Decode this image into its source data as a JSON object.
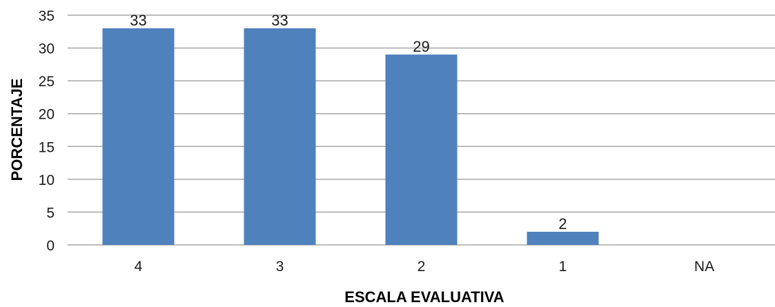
{
  "chart_data": {
    "type": "bar",
    "categories": [
      "4",
      "3",
      "2",
      "1",
      "NA"
    ],
    "values": [
      33,
      33,
      29,
      2,
      null
    ],
    "data_labels": [
      "33",
      "33",
      "29",
      "2",
      ""
    ],
    "xlabel": "ESCALA EVALUATIVA",
    "ylabel": "PORCENTAJE",
    "ylim": [
      0,
      35
    ],
    "yticks": [
      0,
      5,
      10,
      15,
      20,
      25,
      30,
      35
    ],
    "grid": true,
    "legend": "none",
    "bar_color": "#4f81bd",
    "grid_color": "#a6a6a6"
  }
}
